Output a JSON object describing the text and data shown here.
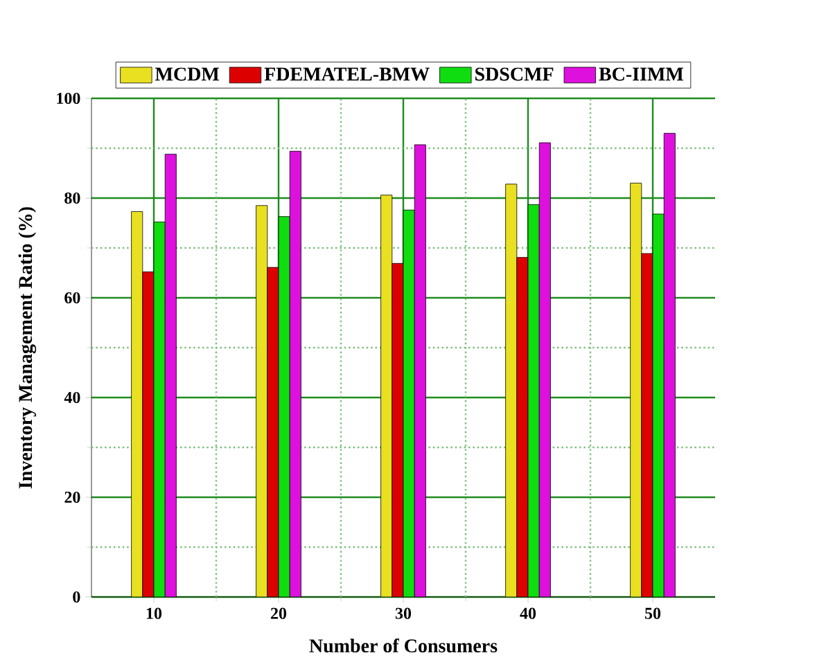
{
  "chart_data": {
    "type": "bar",
    "xlabel": "Number of Consumers",
    "ylabel": "Inventory Management Ratio (%)",
    "x": [
      10,
      20,
      30,
      40,
      50
    ],
    "xlim": [
      5,
      55
    ],
    "xticks": [
      10,
      {
        "value": 15,
        "label": null
      },
      20,
      {
        "value": 25,
        "label": null
      },
      30,
      {
        "value": 35,
        "label": null
      },
      40,
      {
        "value": 45,
        "label": null
      },
      50
    ],
    "ylim": [
      0,
      100
    ],
    "yticks": [
      0,
      {
        "value": 10,
        "label": null
      },
      20,
      {
        "value": 30,
        "label": null
      },
      40,
      {
        "value": 50,
        "label": null
      },
      60,
      {
        "value": 70,
        "label": null
      },
      80,
      {
        "value": 90,
        "label": null
      },
      100
    ],
    "grid": true,
    "legend": "top",
    "series": [
      {
        "name": "MCDM",
        "color": "#e8e020",
        "values": [
          77.3,
          78.5,
          80.6,
          82.8,
          83.0
        ]
      },
      {
        "name": "FDEMATEL-BMW",
        "color": "#dd0000",
        "values": [
          65.2,
          66.1,
          66.9,
          68.1,
          68.9
        ]
      },
      {
        "name": "SDSCMF",
        "color": "#10dd10",
        "values": [
          75.2,
          76.3,
          77.6,
          78.7,
          76.8
        ]
      },
      {
        "name": "BC-IIMM",
        "color": "#dd10dd",
        "values": [
          88.8,
          89.4,
          90.7,
          91.1,
          93.0
        ]
      }
    ]
  }
}
